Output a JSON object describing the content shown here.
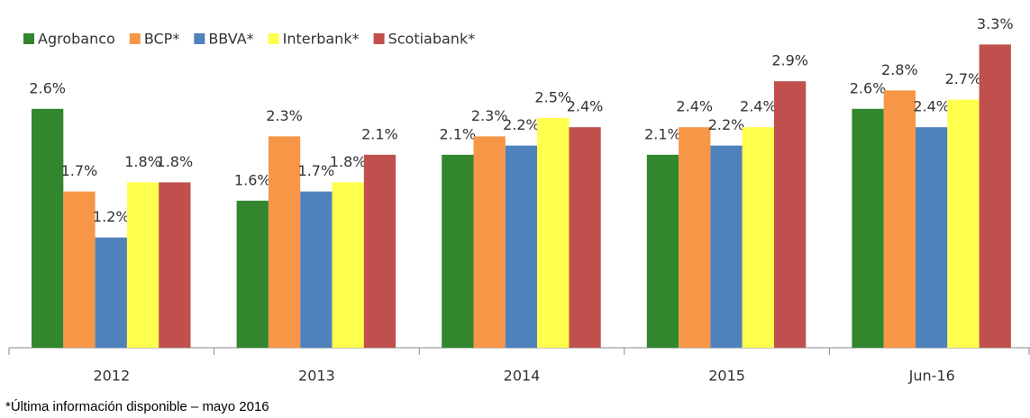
{
  "chart_data": {
    "type": "bar",
    "categories": [
      "2012",
      "2013",
      "2014",
      "2015",
      "Jun-16"
    ],
    "series": [
      {
        "name": "Agrobanco",
        "color": "#31862e",
        "values": [
          2.6,
          1.6,
          2.1,
          2.1,
          2.6
        ],
        "value_labels": [
          "2.6%",
          "1.6%",
          "2.1%",
          "2.1%",
          "2.6%"
        ]
      },
      {
        "name": "BCP*",
        "color": "#f79646",
        "values": [
          1.7,
          2.3,
          2.3,
          2.4,
          2.8
        ],
        "value_labels": [
          "1.7%",
          "2.3%",
          "2.3%",
          "2.4%",
          "2.8%"
        ]
      },
      {
        "name": "BBVA*",
        "color": "#4f81bd",
        "values": [
          1.2,
          1.7,
          2.2,
          2.2,
          2.4
        ],
        "value_labels": [
          "1.2%",
          "1.7%",
          "2.2%",
          "2.2%",
          "2.4%"
        ]
      },
      {
        "name": "Interbank*",
        "color": "#ffff4d",
        "values": [
          1.8,
          1.8,
          2.5,
          2.4,
          2.7
        ],
        "value_labels": [
          "1.8%",
          "1.8%",
          "2.5%",
          "2.4%",
          "2.7%"
        ]
      },
      {
        "name": "Scotiabank*",
        "color": "#c0504d",
        "values": [
          1.8,
          2.1,
          2.4,
          2.9,
          3.3
        ],
        "value_labels": [
          "1.8%",
          "2.1%",
          "2.4%",
          "2.9%",
          "3.3%"
        ]
      }
    ],
    "legend": "top-left",
    "note": "*Última información disponible – mayo 2016"
  }
}
